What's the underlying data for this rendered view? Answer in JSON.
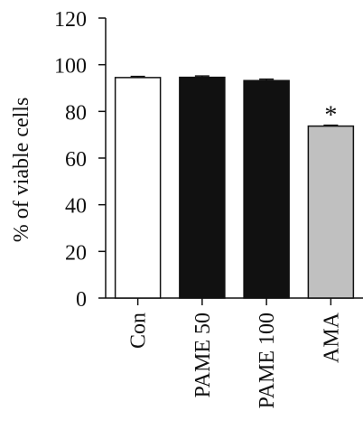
{
  "chart_data": {
    "type": "bar",
    "ylabel": "% of viable cells",
    "ylim": [
      0,
      120
    ],
    "yticks": [
      0,
      20,
      40,
      60,
      80,
      100,
      120
    ],
    "categories": [
      "Con",
      "PAME 50",
      "PAME 100",
      "AMA"
    ],
    "values": [
      94.5,
      94.6,
      93.2,
      73.7
    ],
    "errors": [
      0.5,
      0.6,
      0.6,
      0.4
    ],
    "bar_colors": [
      "#ffffff",
      "#111111",
      "#111111",
      "#c0c0c0"
    ],
    "annotations": [
      {
        "category": "AMA",
        "text": "*"
      }
    ],
    "grid": false,
    "legend": "none"
  }
}
